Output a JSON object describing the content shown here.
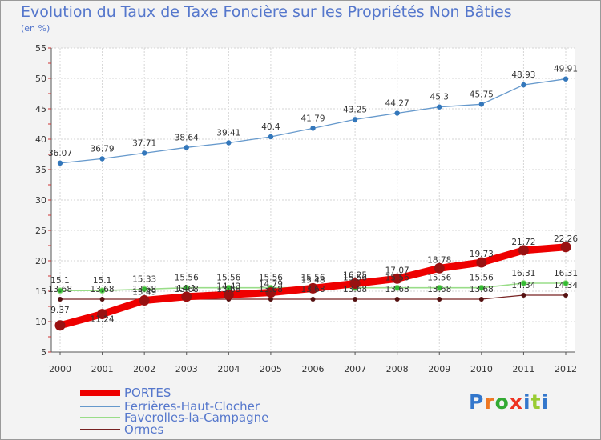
{
  "title": "Evolution du Taux de Taxe Foncière sur les Propriétés Non Bâties",
  "subtitle": "(en %)",
  "logo": {
    "text": "Proxiti",
    "letter_colors": [
      "#3377cc",
      "#ee7722",
      "#33aa33",
      "#ee3322",
      "#3377cc",
      "#99cc33",
      "#3377cc"
    ]
  },
  "chart_data": {
    "type": "line",
    "title": "Evolution du Taux de Taxe Foncière sur les Propriétés Non Bâties",
    "ylabel": "(en %)",
    "xlabel": "",
    "ylim": [
      5,
      55
    ],
    "yticks": [
      5,
      10,
      15,
      20,
      25,
      30,
      35,
      40,
      45,
      50,
      55
    ],
    "grid": true,
    "legend_position": "bottom-left",
    "x": [
      "2000",
      "2001",
      "2002",
      "2003",
      "2004",
      "2005",
      "2006",
      "2007",
      "2008",
      "2009",
      "2010",
      "2011",
      "2012"
    ],
    "series": [
      {
        "name": "PORTES",
        "color": "#ee0000",
        "marker_color": "#991111",
        "values": [
          9.37,
          11.24,
          13.49,
          14.1,
          14.43,
          14.79,
          15.48,
          16.25,
          17.07,
          18.78,
          19.73,
          21.72,
          22.26
        ],
        "labels": [
          "9.37",
          "11.24",
          "13.49",
          "14.1",
          "14.43",
          "14.79",
          "15.48",
          "16.25",
          "17.07",
          "18.78",
          "19.73",
          "21.72",
          "22.26"
        ]
      },
      {
        "name": "Ferrières-Haut-Clocher",
        "color": "#6699cc",
        "marker_color": "#3377bb",
        "values": [
          36.07,
          36.79,
          37.71,
          38.64,
          39.41,
          40.4,
          41.79,
          43.25,
          44.27,
          45.3,
          45.75,
          48.93,
          49.91
        ],
        "labels": [
          "36.07",
          "36.79",
          "37.71",
          "38.64",
          "39.41",
          "40.4",
          "41.79",
          "43.25",
          "44.27",
          "45.3",
          "45.75",
          "48.93",
          "49.91"
        ]
      },
      {
        "name": "Faverolles-la-Campagne",
        "color": "#99dd88",
        "marker_color": "#33bb33",
        "values": [
          15.1,
          15.1,
          15.33,
          15.56,
          15.56,
          15.56,
          15.56,
          15.56,
          15.56,
          15.56,
          15.56,
          16.31,
          16.31
        ],
        "labels": [
          "15.1",
          "15.1",
          "15.33",
          "15.56",
          "15.56",
          "15.56",
          "15.56",
          "15.56",
          "15.56",
          "15.56",
          "15.56",
          "16.31",
          "16.31"
        ]
      },
      {
        "name": "Ormes",
        "color": "#772222",
        "marker_color": "#551111",
        "values": [
          13.68,
          13.68,
          13.68,
          13.68,
          13.68,
          13.68,
          13.68,
          13.68,
          13.68,
          13.68,
          13.68,
          14.34,
          14.34
        ],
        "labels": [
          "13.68",
          "13.68",
          "13.68",
          "13.68",
          "13.68",
          "13.68",
          "13.68",
          "13.68",
          "13.68",
          "13.68",
          "13.68",
          "14.34",
          "14.34"
        ]
      }
    ]
  }
}
